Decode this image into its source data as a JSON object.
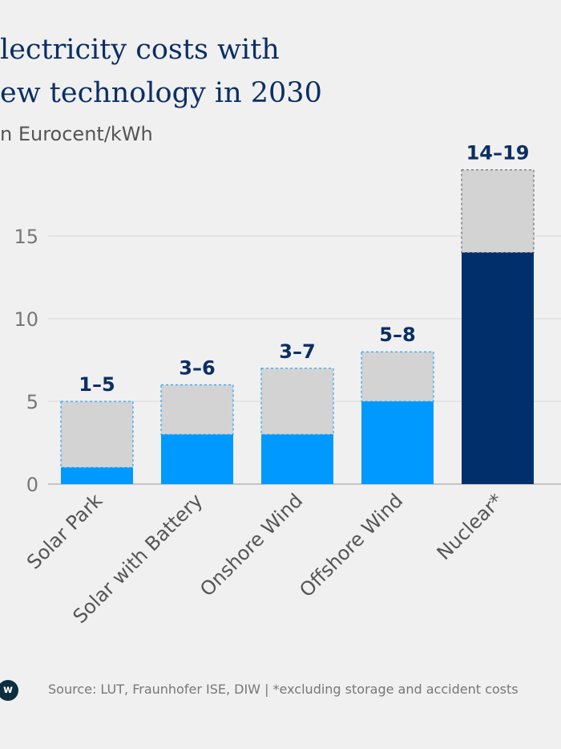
{
  "title_lines": [
    "lectricity costs with",
    "ew technology in 2030"
  ],
  "subtitle": "n Eurocent/kWh",
  "footer": {
    "logo_text": "w",
    "source": "Source: LUT, Fraunhofer ISE, DIW | *excluding storage and accident costs"
  },
  "colors": {
    "low_renewables": "#0099ff",
    "low_nuclear": "#002f6c",
    "range": "#d3d3d3",
    "label": "#0b2f63"
  },
  "chart_data": {
    "type": "bar",
    "stacked_range": true,
    "categories": [
      "Solar Park",
      "Solar with Battery",
      "Onshore Wind",
      "Offshore Wind",
      "Nuclear*"
    ],
    "low": [
      1,
      3,
      3,
      5,
      14
    ],
    "high": [
      5,
      6,
      7,
      8,
      19
    ],
    "data_labels": [
      "1–5",
      "3–6",
      "3–7",
      "5–8",
      "14–19"
    ],
    "ylim": [
      0,
      19
    ],
    "yticks": [
      0,
      5,
      10,
      15
    ],
    "grid": true
  }
}
